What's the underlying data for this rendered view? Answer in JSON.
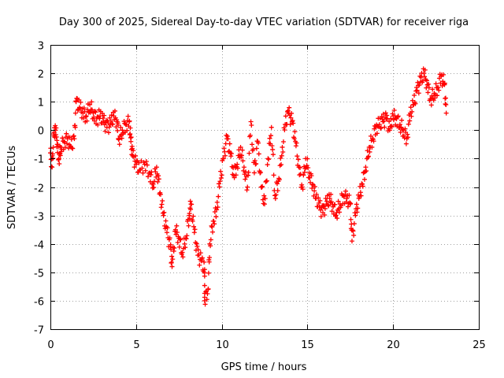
{
  "chart_data": {
    "type": "scatter",
    "title": "Day 300 of 2025, Sidereal Day-to-day VTEC variation (SDTVAR) for receiver riga",
    "xlabel": "GPS time / hours",
    "ylabel": "SDTVAR / TECUs",
    "xlim": [
      0,
      25
    ],
    "ylim": [
      -7,
      3
    ],
    "xticks": [
      0,
      5,
      10,
      15,
      20,
      25
    ],
    "yticks": [
      -7,
      -6,
      -5,
      -4,
      -3,
      -2,
      -1,
      0,
      1,
      2,
      3
    ],
    "grid": true,
    "legend": "none",
    "marker": "+",
    "colors": {
      "series": "#ff0000",
      "grid": "#a0a0a0",
      "axis": "#000000"
    },
    "series": [
      {
        "name": "SDTVAR",
        "points": [
          [
            0.0,
            -0.8
          ],
          [
            0.1,
            -1.3
          ],
          [
            0.2,
            -0.2
          ],
          [
            0.3,
            0.0
          ],
          [
            0.4,
            -0.5
          ],
          [
            0.5,
            -1.0
          ],
          [
            0.6,
            -0.6
          ],
          [
            0.8,
            -0.4
          ],
          [
            1.0,
            -0.3
          ],
          [
            1.2,
            -0.6
          ],
          [
            1.4,
            -0.3
          ],
          [
            1.5,
            1.0
          ],
          [
            1.7,
            0.8
          ],
          [
            1.9,
            0.6
          ],
          [
            2.1,
            0.5
          ],
          [
            2.3,
            0.9
          ],
          [
            2.5,
            0.6
          ],
          [
            2.7,
            0.4
          ],
          [
            2.9,
            0.5
          ],
          [
            3.1,
            0.3
          ],
          [
            3.3,
            0.1
          ],
          [
            3.5,
            0.2
          ],
          [
            3.7,
            0.5
          ],
          [
            3.9,
            0.3
          ],
          [
            4.0,
            -0.3
          ],
          [
            4.2,
            0.0
          ],
          [
            4.4,
            0.2
          ],
          [
            4.6,
            0.3
          ],
          [
            4.7,
            -0.4
          ],
          [
            4.8,
            -0.9
          ],
          [
            5.0,
            -1.2
          ],
          [
            5.2,
            -1.4
          ],
          [
            5.5,
            -1.2
          ],
          [
            5.8,
            -1.5
          ],
          [
            6.0,
            -1.9
          ],
          [
            6.2,
            -1.3
          ],
          [
            6.4,
            -2.2
          ],
          [
            6.6,
            -3.0
          ],
          [
            6.8,
            -3.6
          ],
          [
            7.0,
            -4.1
          ],
          [
            7.1,
            -4.8
          ],
          [
            7.3,
            -3.5
          ],
          [
            7.5,
            -3.8
          ],
          [
            7.7,
            -4.3
          ],
          [
            7.9,
            -3.8
          ],
          [
            8.1,
            -3.0
          ],
          [
            8.2,
            -2.6
          ],
          [
            8.4,
            -3.6
          ],
          [
            8.6,
            -4.4
          ],
          [
            8.8,
            -4.6
          ],
          [
            9.0,
            -4.9
          ],
          [
            9.0,
            -6.0
          ],
          [
            9.2,
            -5.6
          ],
          [
            9.3,
            -4.0
          ],
          [
            9.5,
            -3.2
          ],
          [
            9.7,
            -2.8
          ],
          [
            9.9,
            -1.8
          ],
          [
            10.1,
            -1.0
          ],
          [
            10.3,
            -0.3
          ],
          [
            10.5,
            -0.8
          ],
          [
            10.7,
            -1.6
          ],
          [
            10.9,
            -1.2
          ],
          [
            11.1,
            -0.6
          ],
          [
            11.3,
            -1.3
          ],
          [
            11.5,
            -2.0
          ],
          [
            11.7,
            0.3
          ],
          [
            11.9,
            -1.5
          ],
          [
            12.1,
            -0.4
          ],
          [
            12.3,
            -2.0
          ],
          [
            12.5,
            -2.6
          ],
          [
            12.7,
            -1.0
          ],
          [
            12.9,
            0.1
          ],
          [
            13.1,
            -2.3
          ],
          [
            13.3,
            -1.8
          ],
          [
            13.5,
            -0.9
          ],
          [
            13.7,
            0.2
          ],
          [
            13.9,
            0.6
          ],
          [
            14.1,
            0.3
          ],
          [
            14.3,
            -0.4
          ],
          [
            14.5,
            -1.3
          ],
          [
            14.7,
            -2.0
          ],
          [
            14.9,
            -1.0
          ],
          [
            15.1,
            -1.5
          ],
          [
            15.3,
            -1.9
          ],
          [
            15.5,
            -2.4
          ],
          [
            15.7,
            -2.7
          ],
          [
            15.9,
            -2.9
          ],
          [
            16.1,
            -2.6
          ],
          [
            16.3,
            -2.4
          ],
          [
            16.5,
            -2.7
          ],
          [
            16.7,
            -2.9
          ],
          [
            16.9,
            -2.6
          ],
          [
            17.1,
            -2.3
          ],
          [
            17.3,
            -2.4
          ],
          [
            17.5,
            -2.6
          ],
          [
            17.6,
            -3.9
          ],
          [
            17.8,
            -3.0
          ],
          [
            18.0,
            -2.4
          ],
          [
            18.2,
            -1.9
          ],
          [
            18.4,
            -1.3
          ],
          [
            18.6,
            -0.6
          ],
          [
            18.8,
            -0.3
          ],
          [
            19.0,
            0.1
          ],
          [
            19.2,
            0.2
          ],
          [
            19.4,
            0.3
          ],
          [
            19.6,
            0.4
          ],
          [
            19.8,
            0.0
          ],
          [
            20.0,
            0.5
          ],
          [
            20.2,
            0.4
          ],
          [
            20.4,
            0.2
          ],
          [
            20.6,
            0.0
          ],
          [
            20.8,
            -0.3
          ],
          [
            21.0,
            0.6
          ],
          [
            21.2,
            0.9
          ],
          [
            21.4,
            1.4
          ],
          [
            21.6,
            1.7
          ],
          [
            21.8,
            2.0
          ],
          [
            22.0,
            1.6
          ],
          [
            22.2,
            1.1
          ],
          [
            22.4,
            1.3
          ],
          [
            22.6,
            1.5
          ],
          [
            22.8,
            1.9
          ],
          [
            23.0,
            1.6
          ],
          [
            23.1,
            0.6
          ]
        ]
      }
    ]
  }
}
